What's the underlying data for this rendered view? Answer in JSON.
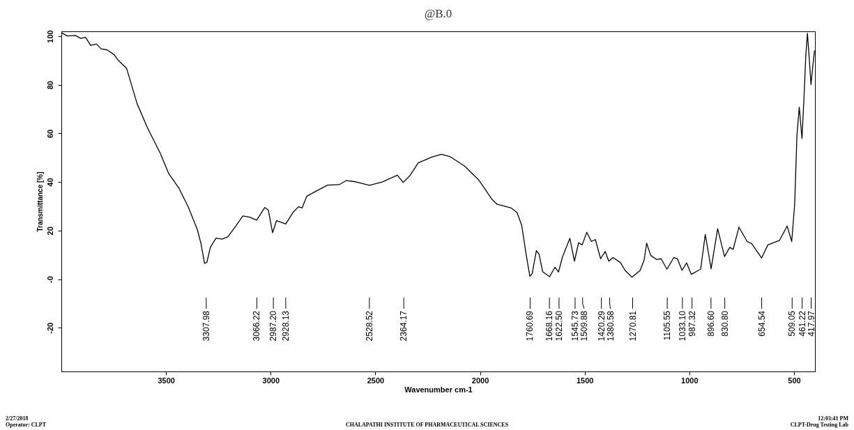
{
  "chart_data": {
    "type": "line",
    "title": "@B.0",
    "xlabel": "Wavenumber cm-1",
    "ylabel": "Transmittance [%]",
    "xlim": [
      4000,
      400
    ],
    "ylim": [
      -38,
      102
    ],
    "xticks": [
      3500,
      3000,
      2500,
      2000,
      1500,
      1000,
      500
    ],
    "yticks": [
      100,
      80,
      60,
      40,
      20,
      {
        "value": 0,
        "label": "-0"
      },
      -20
    ],
    "grid": false,
    "series": [
      {
        "color": "#000000",
        "x": [
          3999,
          3971,
          3933,
          3907,
          3884,
          3860,
          3832,
          3810,
          3782,
          3749,
          3727,
          3688,
          3666,
          3638,
          3588,
          3527,
          3488,
          3438,
          3394,
          3350,
          3333,
          3316,
          3305,
          3288,
          3261,
          3233,
          3205,
          3172,
          3133,
          3100,
          3067,
          3028,
          3011,
          2991,
          2972,
          2928,
          2894,
          2867,
          2850,
          2828,
          2784,
          2728,
          2673,
          2639,
          2595,
          2528,
          2467,
          2395,
          2367,
          2334,
          2295,
          2228,
          2184,
          2140,
          2073,
          2006,
          1945,
          1918,
          1851,
          1823,
          1801,
          1779,
          1762,
          1751,
          1731,
          1718,
          1701,
          1668,
          1642,
          1625,
          1607,
          1571,
          1549,
          1529,
          1512,
          1490,
          1468,
          1449,
          1424,
          1402,
          1385,
          1365,
          1329,
          1307,
          1274,
          1235,
          1216,
          1204,
          1185,
          1157,
          1135,
          1107,
          1074,
          1057,
          1035,
          1013,
          991,
          957,
          946,
          924,
          896,
          865,
          832,
          807,
          791,
          763,
          724,
          702,
          655,
          625,
          569,
          533,
          511,
          497,
          486,
          475,
          462,
          453,
          444,
          436,
          428,
          419,
          410,
          402
        ],
        "values": [
          101.4,
          100.1,
          100.3,
          99.1,
          99.5,
          96.2,
          96.8,
          94.8,
          94.4,
          92.5,
          90,
          86.7,
          80.3,
          72.2,
          62.2,
          51.7,
          43.6,
          37.4,
          29.8,
          20.3,
          14.6,
          6.5,
          6.9,
          13.1,
          16.9,
          16.5,
          17.4,
          21.2,
          26,
          25.5,
          24.3,
          29.5,
          28.4,
          19.1,
          24.1,
          22.7,
          27.4,
          29.8,
          29.3,
          34.1,
          36.2,
          38.7,
          38.9,
          40.6,
          40.1,
          38.6,
          40,
          42.8,
          39.8,
          42.7,
          47.9,
          50.3,
          51.4,
          50.3,
          46.5,
          40.8,
          33.1,
          30.8,
          29.3,
          27.4,
          22.2,
          9.8,
          1.2,
          2.2,
          11.7,
          10.3,
          3.1,
          1.0,
          4.9,
          2.9,
          8.9,
          16.8,
          7.4,
          15.0,
          14.1,
          19.3,
          15.5,
          16.3,
          8.4,
          11.4,
          7.4,
          8.9,
          6.8,
          3.6,
          0.8,
          3.6,
          7.9,
          14.8,
          9.8,
          8.1,
          8.4,
          4.1,
          8.9,
          8.4,
          3.6,
          6.7,
          2,
          3.6,
          4.1,
          18.4,
          4.3,
          20.8,
          9.3,
          13.1,
          12.2,
          21.4,
          15.5,
          14.6,
          8.7,
          14.1,
          16,
          21.9,
          15.5,
          30.8,
          59.3,
          70.8,
          57.9,
          73.6,
          91.7,
          101.2,
          91.7,
          80.1,
          87.9,
          94.1
        ]
      }
    ],
    "annotations": [
      {
        "text": "3307.98",
        "x": 3307.98
      },
      {
        "text": "3066.22",
        "x": 3066.22
      },
      {
        "text": "2987.20",
        "x": 2987.2
      },
      {
        "text": "2928.13",
        "x": 2928.13
      },
      {
        "text": "2528.52",
        "x": 2528.52
      },
      {
        "text": "2364.17",
        "x": 2364.17
      },
      {
        "text": "1760.69",
        "x": 1760.69
      },
      {
        "text": "1668.16",
        "x": 1668.16
      },
      {
        "text": "1622.50",
        "x": 1622.5
      },
      {
        "text": "1545.73",
        "x": 1545.73
      },
      {
        "text": "1509.88",
        "x": 1509.88
      },
      {
        "text": "1420.29",
        "x": 1420.29
      },
      {
        "text": "1380.58",
        "x": 1380.58
      },
      {
        "text": "1270.81",
        "x": 1270.81
      },
      {
        "text": "1105.55",
        "x": 1105.55
      },
      {
        "text": "1033.10",
        "x": 1033.1
      },
      {
        "text": "987.32",
        "x": 987.32
      },
      {
        "text": "896.60",
        "x": 896.6
      },
      {
        "text": "830.80",
        "x": 830.8
      },
      {
        "text": "654.54",
        "x": 654.54
      },
      {
        "text": "509.05",
        "x": 509.05
      },
      {
        "text": "461.22",
        "x": 461.22
      },
      {
        "text": "417.97",
        "x": 417.97
      },
      "2/27/2018",
      "Operator: CLPT",
      "CHALAPATHI INSTITUTE OF PHARMACEUTICAL SCIENCES",
      "12:03:41 PM",
      "CLPT-Drug Testing Lab"
    ]
  }
}
